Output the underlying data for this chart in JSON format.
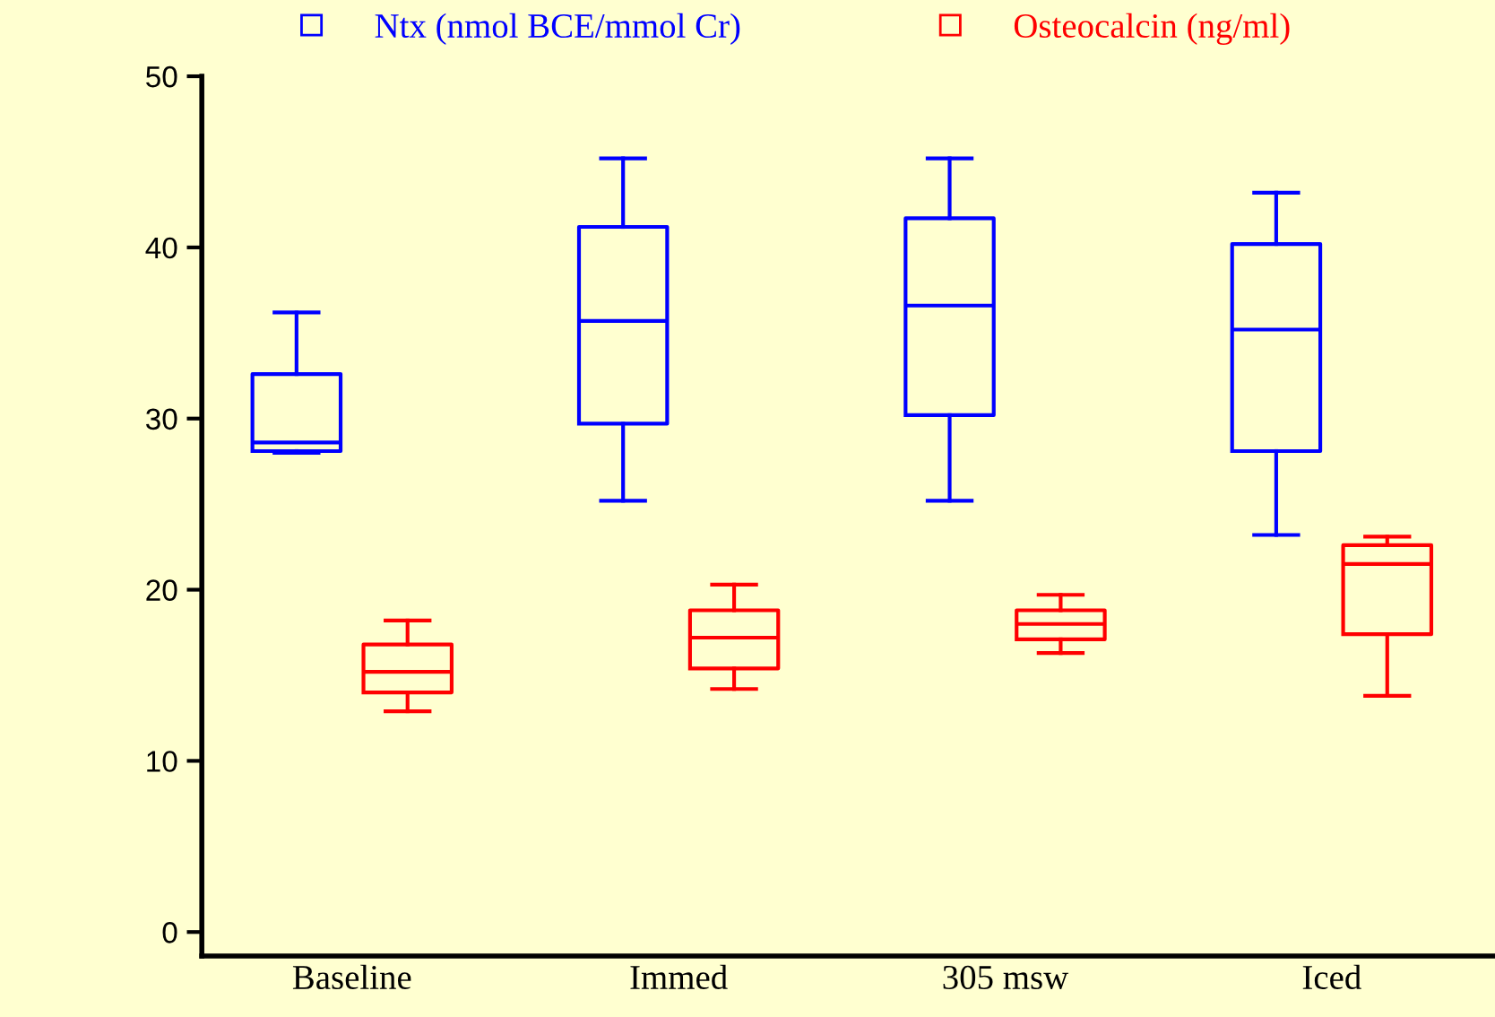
{
  "chart_data": {
    "type": "box",
    "categories": [
      "Baseline",
      "Immed",
      "305 msw",
      "Iced"
    ],
    "series": [
      {
        "name": "Ntx (nmol BCE/mmol Cr)",
        "color": "#0000ff",
        "boxes": [
          {
            "low": 28,
            "q1": 28.1,
            "median": 28.6,
            "q3": 32.6,
            "high": 36.2
          },
          {
            "low": 25.2,
            "q1": 29.7,
            "median": 35.7,
            "q3": 41.2,
            "high": 45.2
          },
          {
            "low": 25.2,
            "q1": 30.2,
            "median": 36.6,
            "q3": 41.7,
            "high": 45.2
          },
          {
            "low": 23.2,
            "q1": 28.1,
            "median": 35.2,
            "q3": 40.2,
            "high": 43.2
          }
        ]
      },
      {
        "name": "Osteocalcin (ng/ml)",
        "color": "#ff0000",
        "boxes": [
          {
            "low": 12.9,
            "q1": 14.0,
            "median": 15.2,
            "q3": 16.8,
            "high": 18.2
          },
          {
            "low": 14.2,
            "q1": 15.4,
            "median": 17.2,
            "q3": 18.8,
            "high": 20.3
          },
          {
            "low": 16.3,
            "q1": 17.1,
            "median": 18.0,
            "q3": 18.8,
            "high": 19.7
          },
          {
            "low": 13.8,
            "q1": 17.4,
            "median": 21.5,
            "q3": 22.6,
            "high": 23.1
          }
        ]
      }
    ],
    "ylim": [
      -1.4,
      50
    ],
    "yticks": [
      0,
      10,
      20,
      30,
      40,
      50
    ],
    "grid": false,
    "legend": "top"
  }
}
